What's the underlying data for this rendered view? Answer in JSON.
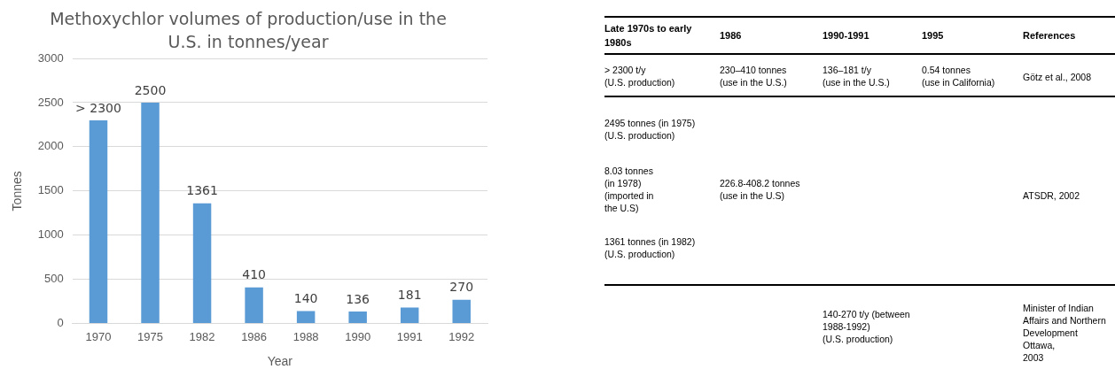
{
  "chart_data": [
    {
      "type": "bar",
      "title": "Methoxychlor volumes of production/use in the U.S. in tonnes/year",
      "xlabel": "Year",
      "ylabel": "Tonnes",
      "categories": [
        "1970",
        "1975",
        "1982",
        "1986",
        "1988",
        "1990",
        "1991",
        "1992"
      ],
      "values": [
        2300,
        2500,
        1361,
        410,
        140,
        136,
        181,
        270
      ],
      "color": "#5b9bd5",
      "value_labels": [
        "> 2300",
        "2500",
        "1361",
        "410",
        "140",
        "136",
        "181",
        "270"
      ],
      "ylim": [
        0,
        3000
      ],
      "yticks": [
        0,
        500,
        1000,
        1500,
        2000,
        2500,
        3000
      ],
      "grid": "y",
      "legend": false
    },
    {
      "type": "other",
      "annotations": [
        "Late 1970s to early 1980s",
        "1986",
        "1990-1991",
        "1995",
        "References",
        "> 2300 t/y\n(U.S. production)",
        "230–410 tonnes\n(use in the U.S.)",
        "136–181 t/y\n(use in the U.S.)",
        "0.54 tonnes\n(use in California)",
        "Götz et al., 2008",
        "2495 tonnes (in 1975)\n(U.S. production)",
        "8.03 tonnes\n(in 1978)\n(imported in\nthe U.S)",
        "1361 tonnes (in 1982)\n(U.S. production)",
        "226.8-408.2 tonnes\n(use in the U.S)",
        "ATSDR, 2002",
        "140-270 t/y (between\n1988-1992)\n(U.S. production)",
        "Minister of Indian\nAffairs and Northern\nDevelopment Ottawa,\n2003"
      ]
    }
  ]
}
